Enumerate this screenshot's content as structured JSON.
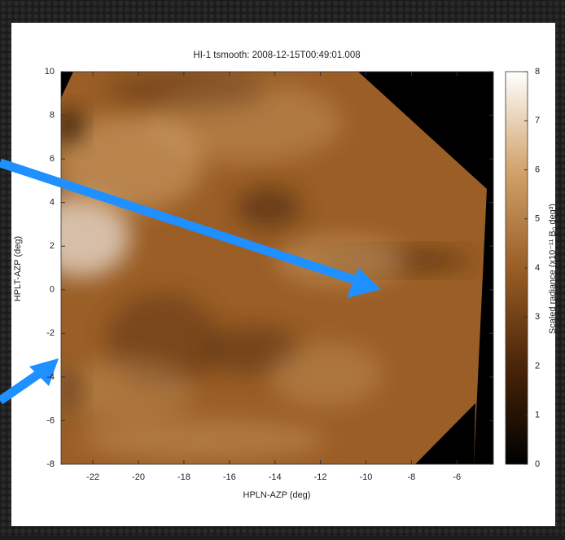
{
  "chart_data": {
    "type": "image",
    "title": "HI-1 tsmooth: 2008-12-15T00:49:01.008",
    "x_label": "HPLN-AZP (deg)",
    "y_label": "HPLT-AZP (deg)",
    "xlim": [
      -23.4,
      -4.4
    ],
    "xticks": [
      -22,
      -20,
      -18,
      -16,
      -14,
      -12,
      -10,
      -8,
      -6
    ],
    "ylim": [
      -8,
      10
    ],
    "yticks": [
      -8,
      -6,
      -4,
      -2,
      0,
      2,
      4,
      6,
      8,
      10
    ],
    "colorbar": {
      "label": "Scaled radiance (x10⁻¹¹ B₀ deg³)",
      "clim": [
        0,
        8
      ],
      "ticks": [
        0,
        1,
        2,
        3,
        4,
        5,
        6,
        7,
        8
      ]
    },
    "colormap": [
      "#000000",
      "#4a2508",
      "#9a5e26",
      "#d2a36c",
      "#ffffff"
    ]
  }
}
